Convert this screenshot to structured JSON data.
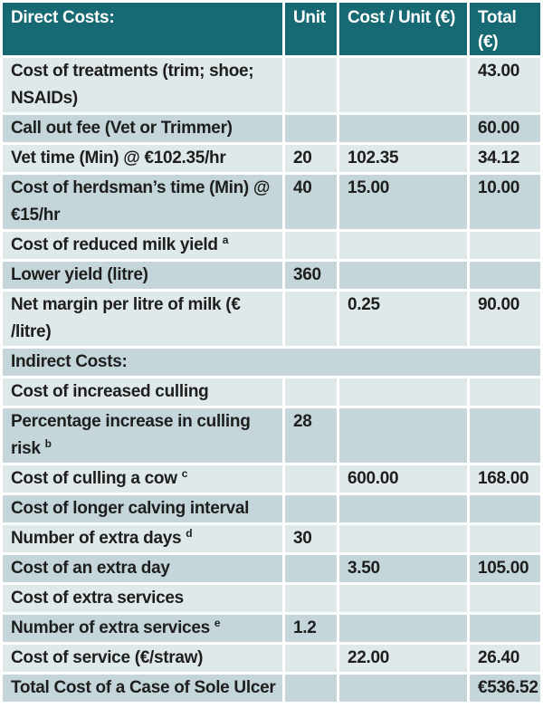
{
  "table": {
    "colors": {
      "header_bg": "#176a73",
      "header_text": "#ffffff",
      "row_light": "#dfe9ea",
      "row_dark": "#c4d6da",
      "text": "#1e1e1e",
      "divider": "#ffffff"
    },
    "columns": [
      "Direct Costs:",
      "Unit",
      "Cost / Unit (€)",
      "Total (€)"
    ],
    "rows": [
      {
        "label": "Cost of treatments (trim; shoe; NSAIDs)",
        "unit": "",
        "cost_per_unit": "",
        "total": "43.00",
        "shade": "light"
      },
      {
        "label": "Call out fee (Vet or Trimmer)",
        "unit": "",
        "cost_per_unit": "",
        "total": "60.00",
        "shade": "dark"
      },
      {
        "label": "Vet time (Min) @ €102.35/hr",
        "unit": "20",
        "cost_per_unit": "102.35",
        "total": "34.12",
        "shade": "light"
      },
      {
        "label": "Cost of herdsman’s time (Min) @ €15/hr",
        "unit": "40",
        "cost_per_unit": "15.00",
        "total": "10.00",
        "shade": "dark"
      },
      {
        "label": "Cost of reduced milk yield",
        "sup": "a",
        "unit": "",
        "cost_per_unit": "",
        "total": "",
        "shade": "light"
      },
      {
        "label": "Lower yield (litre)",
        "unit": "360",
        "cost_per_unit": "",
        "total": "",
        "shade": "dark"
      },
      {
        "label": "Net margin per litre of milk (€ /litre)",
        "unit": "",
        "cost_per_unit": "0.25",
        "total": "90.00",
        "shade": "light"
      },
      {
        "label": "Indirect Costs:",
        "section": true,
        "shade": "dark"
      },
      {
        "label": "Cost of increased culling",
        "unit": "",
        "cost_per_unit": "",
        "total": "",
        "shade": "light"
      },
      {
        "label": "Percentage increase in culling risk",
        "sup": "b",
        "unit": "28",
        "cost_per_unit": "",
        "total": "",
        "shade": "dark"
      },
      {
        "label": "Cost of culling a cow",
        "sup": "c",
        "unit": "",
        "cost_per_unit": "600.00",
        "total": "168.00",
        "shade": "light"
      },
      {
        "label": "Cost of longer calving interval",
        "unit": "",
        "cost_per_unit": "",
        "total": "",
        "shade": "dark"
      },
      {
        "label": "Number of extra days",
        "sup": "d",
        "unit": "30",
        "cost_per_unit": "",
        "total": "",
        "shade": "light"
      },
      {
        "label": "Cost of an extra day",
        "unit": "",
        "cost_per_unit": "3.50",
        "total": "105.00",
        "shade": "dark"
      },
      {
        "label": "Cost of extra services",
        "unit": "",
        "cost_per_unit": "",
        "total": "",
        "shade": "light"
      },
      {
        "label": "Number of extra services",
        "sup": "e",
        "unit": "1.2",
        "cost_per_unit": "",
        "total": "",
        "shade": "dark"
      },
      {
        "label": "Cost of service (€/straw)",
        "unit": "",
        "cost_per_unit": "22.00",
        "total": "26.40",
        "shade": "light"
      },
      {
        "label": "Total Cost of a Case of Sole Ulcer",
        "unit": "",
        "cost_per_unit": "",
        "total": "€536.52",
        "shade": "dark"
      }
    ]
  }
}
